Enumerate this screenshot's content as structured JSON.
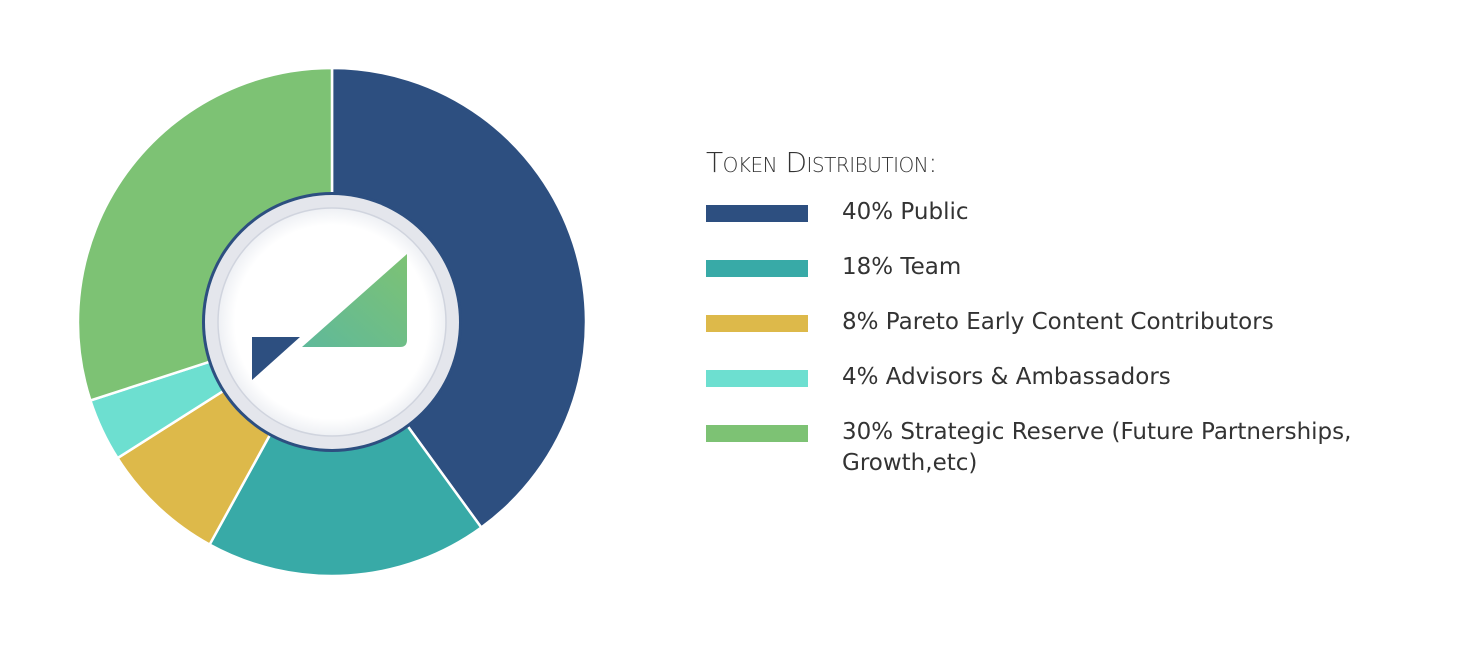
{
  "chart_data": {
    "type": "donut",
    "title": "Token Distribution:",
    "categories": [
      "40% Public",
      "18% Team",
      "8% Pareto Early Content Contributors",
      "4% Advisors & Ambassadors",
      "30% Strategic Reserve (Future Partnerships, Growth,etc)"
    ],
    "values": [
      40,
      18,
      8,
      4,
      30
    ],
    "colors": [
      "#2d4f80",
      "#38aaa7",
      "#ddb94a",
      "#6ddfd0",
      "#7dc274"
    ]
  }
}
